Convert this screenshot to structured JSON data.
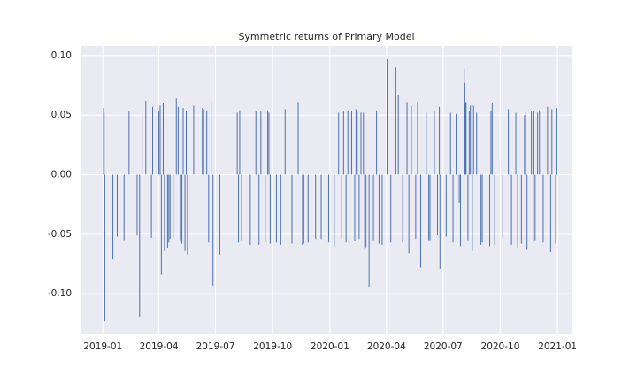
{
  "chart_data": {
    "type": "bar",
    "title": "Symmetric returns of Primary Model",
    "x": [
      "2019-01-02",
      "2019-01-03",
      "2019-01-04",
      "2019-01-17",
      "2019-01-24",
      "2019-02-04",
      "2019-02-12",
      "2019-02-20",
      "2019-02-25",
      "2019-03-01",
      "2019-03-05",
      "2019-03-11",
      "2019-03-20",
      "2019-03-22",
      "2019-03-29",
      "2019-04-01",
      "2019-04-03",
      "2019-04-05",
      "2019-04-08",
      "2019-04-10",
      "2019-04-15",
      "2019-04-17",
      "2019-04-19",
      "2019-04-24",
      "2019-04-29",
      "2019-05-02",
      "2019-05-06",
      "2019-05-08",
      "2019-05-10",
      "2019-05-13",
      "2019-05-15",
      "2019-05-17",
      "2019-05-27",
      "2019-06-10",
      "2019-06-12",
      "2019-06-17",
      "2019-06-20",
      "2019-06-24",
      "2019-06-27",
      "2019-07-08",
      "2019-08-05",
      "2019-08-07",
      "2019-08-09",
      "2019-08-12",
      "2019-08-26",
      "2019-09-04",
      "2019-09-09",
      "2019-09-12",
      "2019-09-19",
      "2019-09-23",
      "2019-09-25",
      "2019-09-27",
      "2019-10-07",
      "2019-10-14",
      "2019-10-21",
      "2019-11-01",
      "2019-11-11",
      "2019-11-18",
      "2019-11-20",
      "2019-11-27",
      "2019-12-09",
      "2019-12-18",
      "2019-12-30",
      "2020-01-08",
      "2020-01-15",
      "2020-01-20",
      "2020-01-23",
      "2020-01-27",
      "2020-01-30",
      "2020-02-05",
      "2020-02-10",
      "2020-02-12",
      "2020-02-14",
      "2020-02-17",
      "2020-02-20",
      "2020-02-24",
      "2020-02-26",
      "2020-02-28",
      "2020-03-04",
      "2020-03-11",
      "2020-03-16",
      "2020-03-20",
      "2020-03-25",
      "2020-04-02",
      "2020-04-08",
      "2020-04-16",
      "2020-04-20",
      "2020-04-27",
      "2020-05-04",
      "2020-05-07",
      "2020-05-11",
      "2020-05-18",
      "2020-05-21",
      "2020-05-26",
      "2020-06-04",
      "2020-06-08",
      "2020-06-10",
      "2020-06-17",
      "2020-06-22",
      "2020-06-25",
      "2020-06-26",
      "2020-07-06",
      "2020-07-13",
      "2020-07-17",
      "2020-07-22",
      "2020-07-27",
      "2020-07-29",
      "2020-08-04",
      "2020-08-05",
      "2020-08-06",
      "2020-08-07",
      "2020-08-10",
      "2020-08-12",
      "2020-08-14",
      "2020-08-17",
      "2020-08-19",
      "2020-08-24",
      "2020-08-31",
      "2020-09-02",
      "2020-09-14",
      "2020-09-16",
      "2020-09-18",
      "2020-09-22",
      "2020-10-05",
      "2020-10-14",
      "2020-10-19",
      "2020-10-26",
      "2020-10-29",
      "2020-11-04",
      "2020-11-09",
      "2020-11-11",
      "2020-11-13",
      "2020-11-20",
      "2020-11-23",
      "2020-11-24",
      "2020-11-26",
      "2020-11-30",
      "2020-12-03",
      "2020-12-09",
      "2020-12-16",
      "2020-12-21",
      "2020-12-23",
      "2020-12-29",
      "2020-12-31"
    ],
    "values": [
      0.056,
      0.052,
      -0.123,
      -0.071,
      -0.052,
      -0.055,
      0.053,
      0.054,
      -0.051,
      -0.119,
      0.051,
      0.062,
      -0.053,
      0.057,
      0.054,
      0.053,
      0.058,
      -0.084,
      0.06,
      -0.064,
      -0.062,
      -0.057,
      -0.054,
      -0.053,
      0.064,
      0.057,
      -0.055,
      -0.058,
      0.056,
      -0.064,
      0.053,
      -0.067,
      0.058,
      0.056,
      0.055,
      0.054,
      -0.057,
      0.06,
      -0.093,
      -0.067,
      0.052,
      -0.057,
      0.054,
      -0.055,
      -0.059,
      0.053,
      -0.059,
      0.053,
      -0.057,
      0.054,
      0.052,
      -0.058,
      -0.057,
      -0.059,
      0.055,
      -0.058,
      0.061,
      -0.059,
      -0.058,
      -0.057,
      -0.054,
      -0.054,
      -0.057,
      -0.06,
      0.052,
      -0.054,
      0.053,
      -0.057,
      0.054,
      0.053,
      -0.056,
      0.055,
      0.054,
      -0.054,
      0.052,
      0.052,
      -0.063,
      -0.061,
      -0.094,
      -0.055,
      0.054,
      -0.058,
      -0.059,
      0.097,
      -0.057,
      0.09,
      0.067,
      -0.057,
      0.061,
      -0.066,
      0.058,
      -0.054,
      0.061,
      -0.078,
      0.052,
      -0.055,
      -0.055,
      0.054,
      -0.051,
      0.057,
      -0.079,
      -0.052,
      0.052,
      -0.057,
      0.051,
      -0.024,
      -0.06,
      0.089,
      0.077,
      0.06,
      0.061,
      -0.055,
      0.053,
      0.058,
      -0.064,
      0.058,
      0.052,
      -0.059,
      -0.057,
      -0.06,
      0.053,
      0.06,
      -0.059,
      -0.053,
      0.055,
      -0.059,
      0.052,
      -0.061,
      -0.058,
      0.05,
      0.052,
      -0.063,
      0.053,
      -0.057,
      0.053,
      -0.055,
      0.052,
      0.054,
      -0.057,
      0.057,
      -0.065,
      0.055,
      -0.058,
      0.056
    ],
    "color": "#4c72b0",
    "xlim": [
      "2018-11-26",
      "2021-01-25"
    ],
    "xticks": [
      {
        "value": "2019-01-01",
        "label": "2019-01"
      },
      {
        "value": "2019-04-01",
        "label": "2019-04"
      },
      {
        "value": "2019-07-01",
        "label": "2019-07"
      },
      {
        "value": "2019-10-01",
        "label": "2019-10"
      },
      {
        "value": "2020-01-01",
        "label": "2020-01"
      },
      {
        "value": "2020-04-01",
        "label": "2020-04"
      },
      {
        "value": "2020-07-01",
        "label": "2020-07"
      },
      {
        "value": "2020-10-01",
        "label": "2020-10"
      },
      {
        "value": "2021-01-01",
        "label": "2021-01"
      }
    ],
    "ylim": [
      -0.134,
      0.108
    ],
    "yticks": [
      {
        "value": -0.1,
        "label": "-0.10"
      },
      {
        "value": -0.05,
        "label": "-0.05"
      },
      {
        "value": 0,
        "label": "0.00"
      },
      {
        "value": 0.05,
        "label": "0.05"
      },
      {
        "value": 0.1,
        "label": "0.10"
      }
    ],
    "grid": true
  }
}
